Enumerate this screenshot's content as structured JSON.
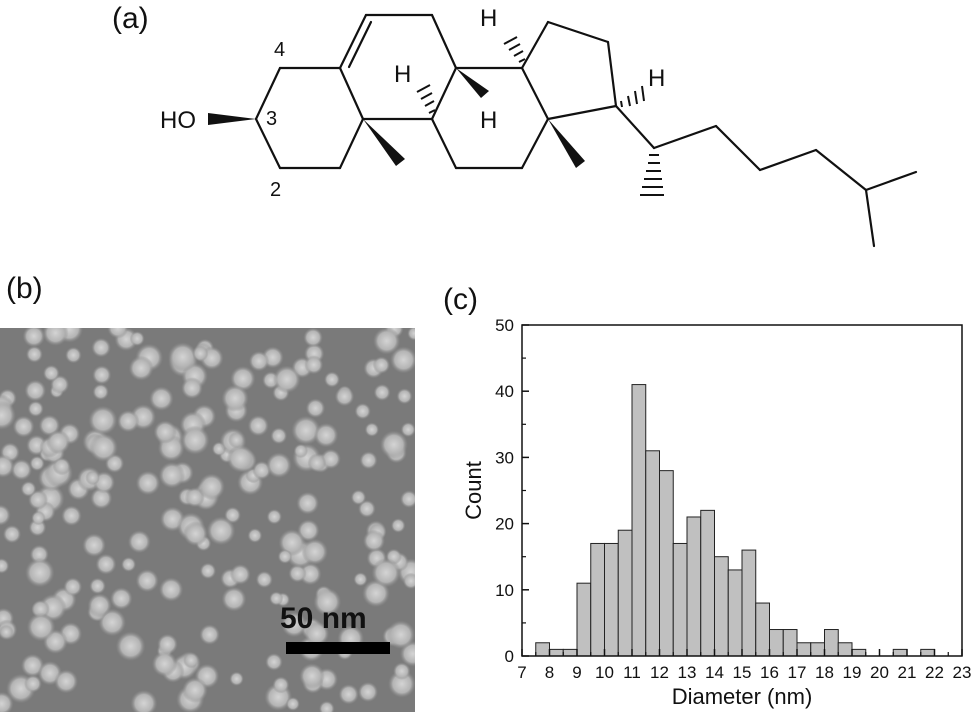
{
  "panels": {
    "a": "(a)",
    "b": "(b)",
    "c": "(c)"
  },
  "molecule": {
    "atom_labels": {
      "ho": "HO",
      "c2": "2",
      "c3": "3",
      "c4": "4",
      "h_8": "H",
      "h_9": "H",
      "h_14": "H",
      "h_17": "H"
    }
  },
  "micrograph": {
    "scale_bar_label": "50 nm"
  },
  "chart_data": {
    "type": "bar",
    "xlabel": "Diameter (nm)",
    "ylabel": "Count",
    "xlim": [
      7,
      23
    ],
    "ylim": [
      0,
      50
    ],
    "x_ticks": [
      7,
      8,
      9,
      10,
      11,
      12,
      13,
      14,
      15,
      16,
      17,
      18,
      19,
      20,
      21,
      22,
      23
    ],
    "y_ticks": [
      0,
      10,
      20,
      30,
      40,
      50
    ],
    "bin_width": 0.5,
    "bins": [
      {
        "x": 7.5,
        "count": 2
      },
      {
        "x": 8.0,
        "count": 1
      },
      {
        "x": 8.5,
        "count": 1
      },
      {
        "x": 9.0,
        "count": 11
      },
      {
        "x": 9.5,
        "count": 17
      },
      {
        "x": 10.0,
        "count": 17
      },
      {
        "x": 10.5,
        "count": 19
      },
      {
        "x": 11.0,
        "count": 41
      },
      {
        "x": 11.5,
        "count": 31
      },
      {
        "x": 12.0,
        "count": 28
      },
      {
        "x": 12.5,
        "count": 17
      },
      {
        "x": 13.0,
        "count": 21
      },
      {
        "x": 13.5,
        "count": 22
      },
      {
        "x": 14.0,
        "count": 15
      },
      {
        "x": 14.5,
        "count": 13
      },
      {
        "x": 15.0,
        "count": 16
      },
      {
        "x": 15.5,
        "count": 8
      },
      {
        "x": 16.0,
        "count": 4
      },
      {
        "x": 16.5,
        "count": 4
      },
      {
        "x": 17.0,
        "count": 2
      },
      {
        "x": 17.5,
        "count": 2
      },
      {
        "x": 18.0,
        "count": 4
      },
      {
        "x": 18.5,
        "count": 2
      },
      {
        "x": 19.0,
        "count": 1
      },
      {
        "x": 19.5,
        "count": 0
      },
      {
        "x": 20.0,
        "count": 0
      },
      {
        "x": 20.5,
        "count": 1
      },
      {
        "x": 21.0,
        "count": 0
      },
      {
        "x": 21.5,
        "count": 1
      },
      {
        "x": 22.0,
        "count": 0
      },
      {
        "x": 22.5,
        "count": 0
      }
    ],
    "bar_color": "#c0c0c0",
    "grid": false
  }
}
